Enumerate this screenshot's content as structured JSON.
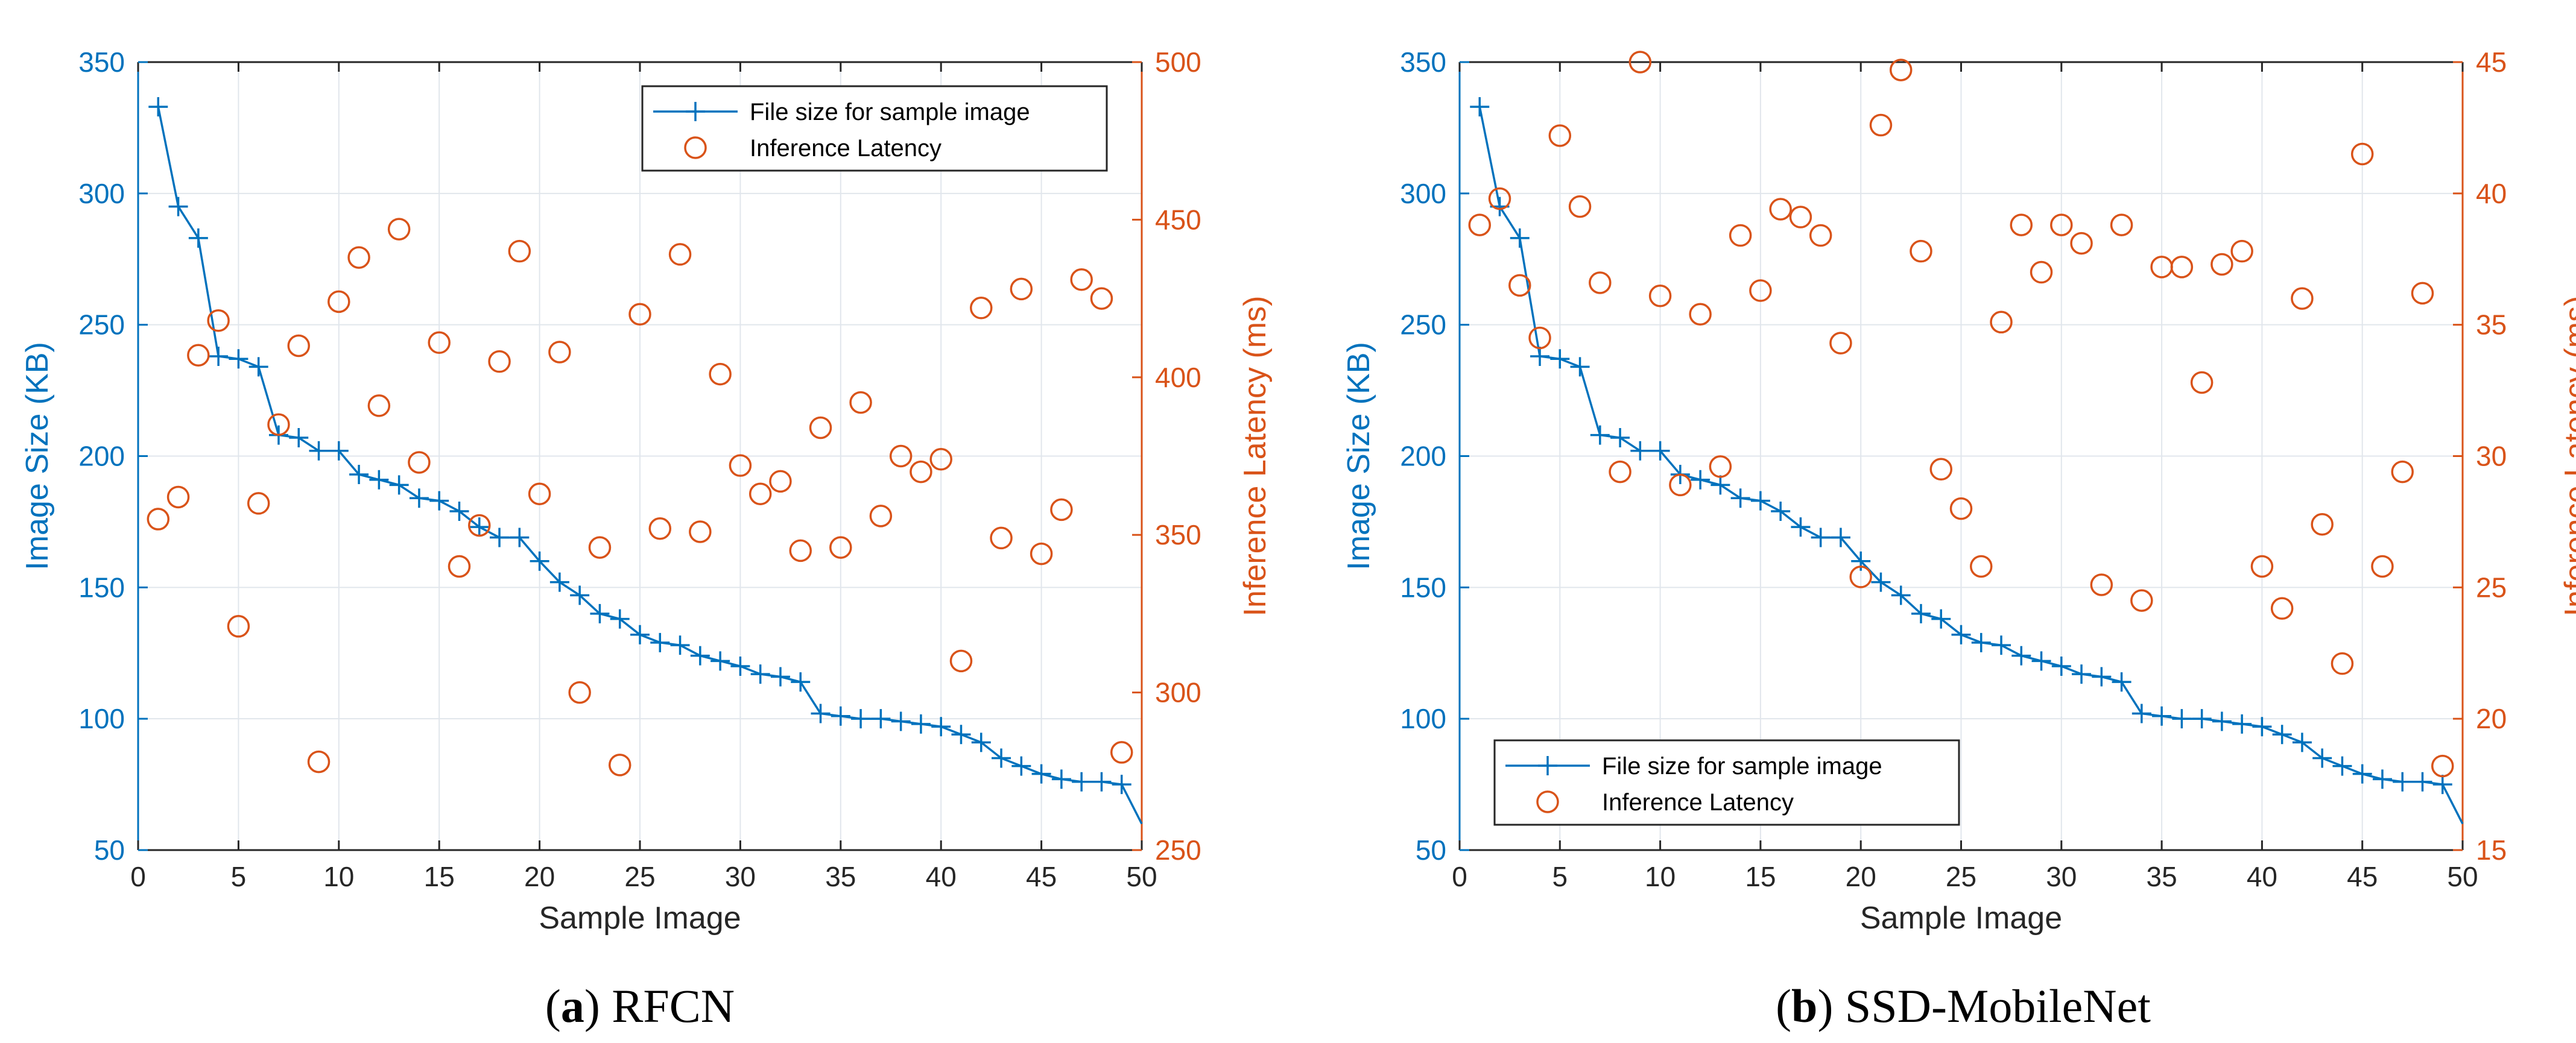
{
  "colors": {
    "left_axis": "#0072BD",
    "right_axis": "#D95319",
    "grid": "#e1e6ec",
    "box": "#262626"
  },
  "chart_data": [
    {
      "type": "line+scatter",
      "caption": {
        "label": "a",
        "name": "RFCN"
      },
      "xlabel": "Sample Image",
      "ylabel_left": "Image Size (KB)",
      "ylabel_right": "Inference Latency (ms)",
      "xlim": [
        0,
        50
      ],
      "ylim_left": [
        50,
        350
      ],
      "ylim_right": [
        250,
        500
      ],
      "xticks": [
        "0",
        "5",
        "10",
        "15",
        "20",
        "25",
        "30",
        "35",
        "40",
        "45",
        "50"
      ],
      "yticks_left": [
        "50",
        "100",
        "150",
        "200",
        "250",
        "300",
        "350"
      ],
      "yticks_right": [
        "250",
        "300",
        "350",
        "400",
        "450",
        "500"
      ],
      "legend": {
        "position": "top-right",
        "items": [
          "File size for sample image",
          "Inference Latency"
        ]
      },
      "file_size": {
        "name": "File size for sample image",
        "x": [
          1,
          2,
          3,
          4,
          5,
          6,
          7,
          8,
          9,
          10,
          11,
          12,
          13,
          14,
          15,
          16,
          17,
          18,
          19,
          20,
          21,
          22,
          23,
          24,
          25,
          26,
          27,
          28,
          29,
          30,
          31,
          32,
          33,
          34,
          35,
          36,
          37,
          38,
          39,
          40,
          41,
          42,
          43,
          44,
          45,
          46,
          47,
          48,
          49,
          50
        ],
        "values": [
          333,
          295,
          283,
          238,
          237,
          234,
          208,
          207,
          202,
          202,
          193,
          191,
          189,
          184,
          183,
          179,
          173,
          169,
          169,
          160,
          152,
          147,
          140,
          138,
          132,
          129,
          128,
          124,
          122,
          120,
          117,
          116,
          114,
          102,
          101,
          100,
          100,
          99,
          98,
          97,
          94,
          91,
          85,
          82,
          79,
          77,
          76,
          76,
          75,
          60
        ]
      },
      "latency": {
        "name": "Inference Latency",
        "x": [
          1,
          2,
          3,
          4,
          5,
          6,
          7,
          8,
          9,
          10,
          11,
          12,
          13,
          14,
          15,
          16,
          17,
          18,
          19,
          20,
          21,
          22,
          23,
          24,
          25,
          26,
          27,
          28,
          29,
          30,
          31,
          32,
          33,
          34,
          35,
          36,
          37,
          38,
          39,
          40,
          41,
          42,
          43,
          44,
          45,
          46,
          47,
          48,
          49
        ],
        "values": [
          355,
          362,
          407,
          418,
          321,
          360,
          385,
          410,
          278,
          424,
          438,
          391,
          447,
          373,
          411,
          340,
          353,
          405,
          440,
          363,
          408,
          300,
          346,
          277,
          420,
          352,
          439,
          351,
          401,
          372,
          363,
          367,
          345,
          384,
          346,
          392,
          356,
          375,
          370,
          374,
          310,
          422,
          349,
          428,
          344,
          358,
          431,
          425,
          281
        ]
      }
    },
    {
      "type": "line+scatter",
      "caption": {
        "label": "b",
        "name": "SSD-MobileNet"
      },
      "xlabel": "Sample Image",
      "ylabel_left": "Image Size (KB)",
      "ylabel_right": "Inference Latency (ms)",
      "xlim": [
        0,
        50
      ],
      "ylim_left": [
        50,
        350
      ],
      "ylim_right": [
        15,
        45
      ],
      "xticks": [
        "0",
        "5",
        "10",
        "15",
        "20",
        "25",
        "30",
        "35",
        "40",
        "45",
        "50"
      ],
      "yticks_left": [
        "50",
        "100",
        "150",
        "200",
        "250",
        "300",
        "350"
      ],
      "yticks_right": [
        "15",
        "20",
        "25",
        "30",
        "35",
        "40",
        "45"
      ],
      "legend": {
        "position": "bottom-left",
        "items": [
          "File size for sample image",
          "Inference Latency"
        ]
      },
      "file_size": {
        "name": "File size for sample image",
        "x": [
          1,
          2,
          3,
          4,
          5,
          6,
          7,
          8,
          9,
          10,
          11,
          12,
          13,
          14,
          15,
          16,
          17,
          18,
          19,
          20,
          21,
          22,
          23,
          24,
          25,
          26,
          27,
          28,
          29,
          30,
          31,
          32,
          33,
          34,
          35,
          36,
          37,
          38,
          39,
          40,
          41,
          42,
          43,
          44,
          45,
          46,
          47,
          48,
          49,
          50
        ],
        "values": [
          333,
          295,
          283,
          238,
          237,
          234,
          208,
          207,
          202,
          202,
          193,
          191,
          189,
          184,
          183,
          179,
          173,
          169,
          169,
          160,
          152,
          147,
          140,
          138,
          132,
          129,
          128,
          124,
          122,
          120,
          117,
          116,
          114,
          102,
          101,
          100,
          100,
          99,
          98,
          97,
          94,
          91,
          85,
          82,
          79,
          77,
          76,
          76,
          75,
          60
        ]
      },
      "latency": {
        "name": "Inference Latency",
        "x": [
          1,
          2,
          3,
          4,
          5,
          6,
          7,
          8,
          9,
          10,
          11,
          12,
          13,
          14,
          15,
          16,
          17,
          18,
          19,
          20,
          21,
          22,
          23,
          24,
          25,
          26,
          27,
          28,
          29,
          30,
          31,
          32,
          33,
          34,
          35,
          36,
          37,
          38,
          39,
          40,
          41,
          42,
          43,
          44,
          45,
          46,
          47,
          48,
          49
        ],
        "values": [
          38.8,
          39.8,
          36.5,
          34.5,
          42.2,
          39.5,
          36.6,
          29.4,
          45,
          36.1,
          28.9,
          35.4,
          29.6,
          38.4,
          36.3,
          39.4,
          39.1,
          38.4,
          34.3,
          25.4,
          42.6,
          44.7,
          37.8,
          29.5,
          28,
          25.8,
          35.1,
          38.8,
          37,
          38.8,
          38.1,
          25.1,
          38.8,
          24.5,
          37.2,
          37.2,
          32.8,
          37.3,
          37.8,
          25.8,
          24.2,
          36,
          27.4,
          22.1,
          41.5,
          25.8,
          29.4,
          36.2,
          18.2
        ]
      }
    }
  ]
}
